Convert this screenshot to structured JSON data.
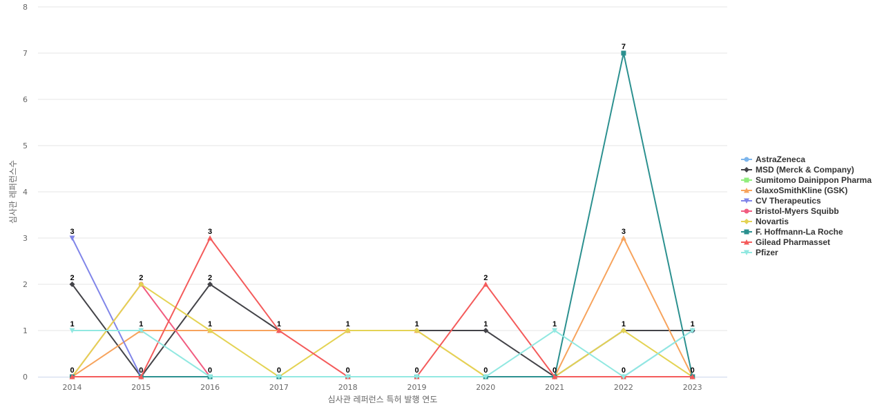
{
  "chart_data": {
    "type": "line",
    "title": "",
    "xlabel": "심사관 레퍼런스 특허 발행 연도",
    "ylabel": "심사관 레퍼런스수",
    "x": [
      "2014",
      "2015",
      "2016",
      "2017",
      "2018",
      "2019",
      "2020",
      "2021",
      "2022",
      "2023"
    ],
    "ylim": [
      0,
      8
    ],
    "yticks": [
      "0",
      "1",
      "2",
      "3",
      "4",
      "5",
      "6",
      "7",
      "8"
    ],
    "grid": true,
    "legend_position": "right",
    "series": [
      {
        "name": "AstraZeneca",
        "color": "#7cb5ec",
        "marker": "circle",
        "values": [
          0,
          0,
          0,
          0,
          0,
          0,
          0,
          0,
          0,
          1
        ]
      },
      {
        "name": "MSD (Merck & Company)",
        "color": "#434348",
        "marker": "diamond",
        "values": [
          2,
          0,
          2,
          1,
          1,
          1,
          1,
          0,
          1,
          1
        ]
      },
      {
        "name": "Sumitomo Dainippon Pharma",
        "color": "#90ed7d",
        "marker": "square",
        "values": [
          0,
          0,
          0,
          0,
          0,
          0,
          0,
          0,
          0,
          0
        ]
      },
      {
        "name": "GlaxoSmithKline (GSK)",
        "color": "#f7a35c",
        "marker": "triangle",
        "values": [
          0,
          1,
          1,
          1,
          1,
          1,
          0,
          0,
          3,
          0
        ]
      },
      {
        "name": "CV Therapeutics",
        "color": "#8085e9",
        "marker": "triangle-down",
        "values": [
          3,
          0,
          0,
          0,
          0,
          0,
          0,
          0,
          0,
          0
        ]
      },
      {
        "name": "Bristol-Myers Squibb",
        "color": "#f15c80",
        "marker": "circle",
        "values": [
          0,
          2,
          0,
          0,
          0,
          0,
          0,
          0,
          0,
          0
        ]
      },
      {
        "name": "Novartis",
        "color": "#e4d354",
        "marker": "diamond",
        "values": [
          0,
          2,
          1,
          0,
          1,
          1,
          0,
          0,
          1,
          0
        ]
      },
      {
        "name": "F. Hoffmann-La Roche",
        "color": "#2b908f",
        "marker": "square",
        "values": [
          0,
          0,
          0,
          0,
          0,
          0,
          0,
          0,
          7,
          0
        ]
      },
      {
        "name": "Gilead Pharmasset",
        "color": "#f45b5b",
        "marker": "triangle",
        "values": [
          0,
          0,
          3,
          1,
          0,
          0,
          2,
          0,
          0,
          0
        ]
      },
      {
        "name": "Pfizer",
        "color": "#91e8e1",
        "marker": "triangle-down",
        "values": [
          1,
          1,
          0,
          0,
          0,
          0,
          0,
          1,
          0,
          1
        ]
      }
    ],
    "data_labels": [
      {
        "x": "2014",
        "values": [
          "3",
          "2",
          "1",
          "0"
        ]
      },
      {
        "x": "2015",
        "values": [
          "2",
          "1",
          "0"
        ]
      },
      {
        "x": "2016",
        "values": [
          "3",
          "2",
          "1",
          "0"
        ]
      },
      {
        "x": "2017",
        "values": [
          "1",
          "0"
        ]
      },
      {
        "x": "2018",
        "values": [
          "1",
          "0"
        ]
      },
      {
        "x": "2019",
        "values": [
          "1",
          "0"
        ]
      },
      {
        "x": "2020",
        "values": [
          "2",
          "1",
          "0"
        ]
      },
      {
        "x": "2021",
        "values": [
          "1",
          "0"
        ]
      },
      {
        "x": "2022",
        "values": [
          "7",
          "3",
          "1",
          "0"
        ]
      },
      {
        "x": "2023",
        "values": [
          "1",
          "0"
        ]
      }
    ]
  }
}
